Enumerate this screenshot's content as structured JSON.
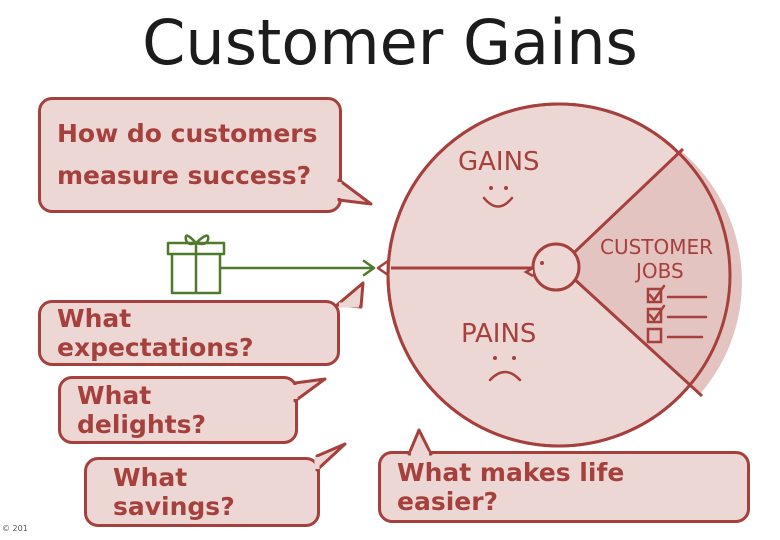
{
  "title": "Customer Gains",
  "colors": {
    "accent": "#a6403d",
    "bubble_fill": "#ecd7d4",
    "gift_green": "#4e7a2c",
    "title_text": "#1c1c1c"
  },
  "bubbles": {
    "measure_success": {
      "line1": "How do customers",
      "line2": "measure success?"
    },
    "expectations": "What expectations?",
    "delights": "What delights?",
    "savings": "What savings?",
    "life_easier": "What makes life easier?"
  },
  "diagram": {
    "gains_label": "GAINS",
    "pains_label": "PAINS",
    "customer_jobs_line1": "CUSTOMER",
    "customer_jobs_line2": "JOBS",
    "gains_face": "smile",
    "pains_face": "frown",
    "gift_icon": "gift-icon",
    "checklist_icon": "checklist-icon",
    "arrow_icon": "arrow-left-icon"
  },
  "copyright": "© 201"
}
